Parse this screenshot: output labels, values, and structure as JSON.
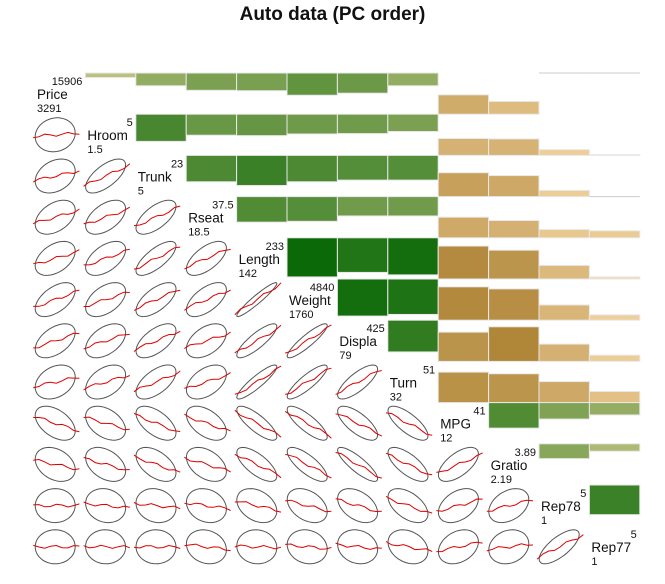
{
  "chart_data": {
    "type": "heatmap",
    "subtype": "corrgram",
    "title": "Auto data (PC order)",
    "upper_panel": "bars",
    "lower_panel": "ellipse with loess line",
    "diagonal_panel": "variable name with min/max",
    "colors": {
      "positive_low": "#d4cc8c",
      "positive_high": "#006400",
      "negative_low": "#f9dcaa",
      "negative_high": "#a27624",
      "loess": "#dd0000",
      "ellipse": "#555555"
    },
    "variables": [
      {
        "name": "Price",
        "max": "15906",
        "min": "3291"
      },
      {
        "name": "Hroom",
        "max": "5",
        "min": "1.5"
      },
      {
        "name": "Trunk",
        "max": "23",
        "min": "5"
      },
      {
        "name": "Rseat",
        "max": "37.5",
        "min": "18.5"
      },
      {
        "name": "Length",
        "max": "233",
        "min": "142"
      },
      {
        "name": "Weight",
        "max": "4840",
        "min": "1760"
      },
      {
        "name": "Displa",
        "max": "425",
        "min": "79"
      },
      {
        "name": "Turn",
        "max": "51",
        "min": "32"
      },
      {
        "name": "MPG",
        "max": "41",
        "min": "12"
      },
      {
        "name": "Gratio",
        "max": "3.89",
        "min": "2.19"
      },
      {
        "name": "Rep78",
        "max": "5",
        "min": "1"
      },
      {
        "name": "Rep77",
        "max": "5",
        "min": "1"
      }
    ],
    "correlations": [
      [
        1,
        0.11,
        0.31,
        0.42,
        0.43,
        0.54,
        0.49,
        0.31,
        -0.47,
        -0.31,
        0.01,
        0.0
      ],
      [
        0.11,
        1,
        0.66,
        0.51,
        0.52,
        0.48,
        0.47,
        0.42,
        -0.41,
        -0.4,
        -0.14,
        -0.02
      ],
      [
        0.31,
        0.66,
        1,
        0.64,
        0.73,
        0.64,
        0.6,
        0.6,
        -0.58,
        -0.51,
        -0.15,
        -0.01
      ],
      [
        0.42,
        0.51,
        0.64,
        1,
        0.62,
        0.6,
        0.47,
        0.47,
        -0.5,
        -0.42,
        -0.2,
        -0.17
      ],
      [
        0.43,
        0.52,
        0.73,
        0.62,
        1,
        0.95,
        0.84,
        0.9,
        -0.8,
        -0.7,
        -0.33,
        -0.05
      ],
      [
        0.54,
        0.48,
        0.64,
        0.6,
        0.95,
        1,
        0.9,
        0.86,
        -0.81,
        -0.76,
        -0.37,
        -0.13
      ],
      [
        0.49,
        0.47,
        0.6,
        0.47,
        0.84,
        0.9,
        1,
        0.77,
        -0.71,
        -0.84,
        -0.42,
        -0.15
      ],
      [
        0.31,
        0.42,
        0.6,
        0.47,
        0.9,
        0.86,
        0.77,
        1,
        -0.74,
        -0.7,
        -0.51,
        -0.27
      ],
      [
        -0.47,
        -0.41,
        -0.58,
        -0.5,
        -0.8,
        -0.81,
        -0.71,
        -0.74,
        1,
        0.62,
        0.4,
        0.3
      ],
      [
        -0.31,
        -0.4,
        -0.51,
        -0.42,
        -0.7,
        -0.76,
        -0.84,
        -0.7,
        0.62,
        1,
        0.36,
        0.18
      ],
      [
        0.01,
        -0.14,
        -0.15,
        -0.2,
        -0.33,
        -0.37,
        -0.42,
        -0.51,
        0.4,
        0.36,
        1,
        0.72
      ],
      [
        0.0,
        -0.02,
        -0.01,
        -0.17,
        -0.05,
        -0.13,
        -0.15,
        -0.27,
        0.3,
        0.18,
        0.72,
        1
      ]
    ]
  }
}
